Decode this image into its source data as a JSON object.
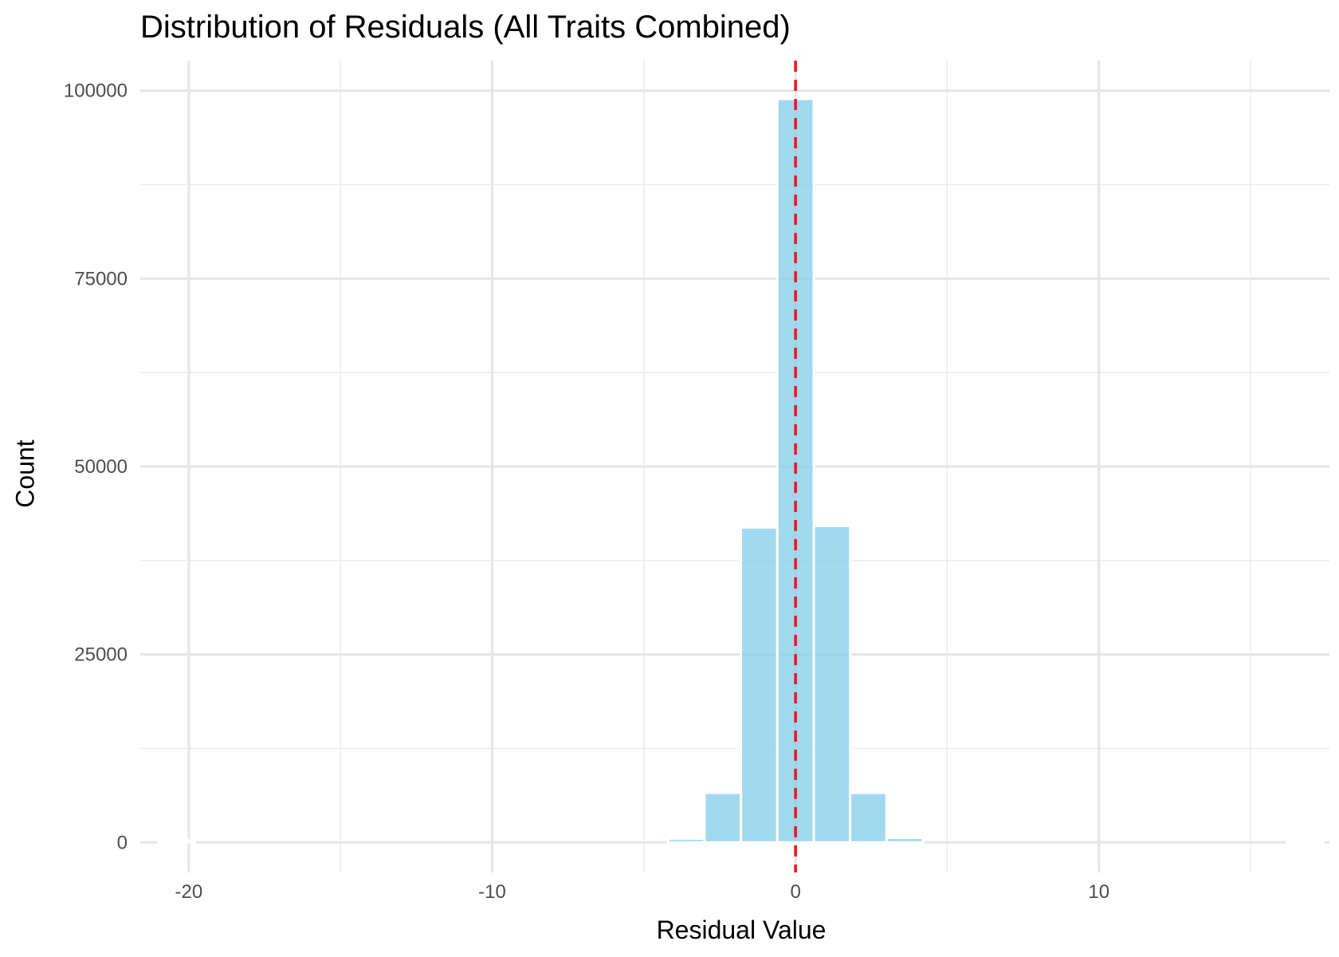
{
  "chart_data": {
    "type": "bar",
    "title": "Distribution of Residuals (All Traits Combined)",
    "xlabel": "Residual Value",
    "ylabel": "Count",
    "xlim": [
      -21.6,
      17.6
    ],
    "ylim": [
      -4000,
      104000
    ],
    "x_ticks": [
      -20,
      -10,
      0,
      10
    ],
    "x_tick_labels": [
      "-20",
      "-10",
      "0",
      "10"
    ],
    "y_ticks": [
      0,
      25000,
      50000,
      75000,
      100000
    ],
    "y_tick_labels": [
      "0",
      "25000",
      "50000",
      "75000",
      "100000"
    ],
    "bin_width": 1.2,
    "bins": [
      {
        "center": -20.4,
        "count": 30
      },
      {
        "center": -3.6,
        "count": 500
      },
      {
        "center": -2.4,
        "count": 6600
      },
      {
        "center": -1.2,
        "count": 41900
      },
      {
        "center": 0.0,
        "count": 98900
      },
      {
        "center": 1.2,
        "count": 42100
      },
      {
        "center": 2.4,
        "count": 6600
      },
      {
        "center": 3.6,
        "count": 600
      },
      {
        "center": 16.8,
        "count": 30
      }
    ],
    "reference_line": {
      "x": 0,
      "style": "dashed",
      "color": "#e31a1c"
    },
    "bar_color": "#87ceeb",
    "grid": true,
    "legend": "none"
  }
}
